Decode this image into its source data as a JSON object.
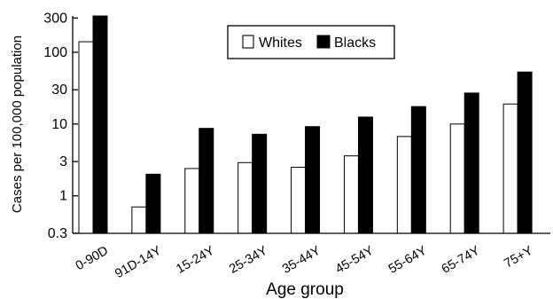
{
  "chart_data": {
    "type": "bar",
    "xlabel": "Age group",
    "ylabel": "Cases per 100,000 population",
    "yscale": "log",
    "ylim": [
      0.3,
      320
    ],
    "yticks": [
      0.3,
      1,
      3,
      10,
      30,
      100,
      300
    ],
    "ytick_labels": [
      "0.3",
      "1",
      "3",
      "10",
      "30",
      "100",
      "300"
    ],
    "categories": [
      "0-90D",
      "91D-14Y",
      "15-24Y",
      "25-34Y",
      "35-44Y",
      "45-54Y",
      "55-64Y",
      "65-74Y",
      "75+Y"
    ],
    "series": [
      {
        "name": "Whites",
        "values": [
          140,
          0.7,
          2.4,
          2.9,
          2.5,
          3.6,
          6.7,
          10,
          19
        ],
        "color": "#ffffff"
      },
      {
        "name": "Blacks",
        "values": [
          320,
          2.0,
          8.7,
          7.2,
          9.2,
          12.5,
          17.5,
          27,
          53
        ],
        "color": "#000000"
      }
    ],
    "legend": {
      "placement": "top-center",
      "items": [
        "Whites",
        "Blacks"
      ]
    },
    "grid": false
  }
}
